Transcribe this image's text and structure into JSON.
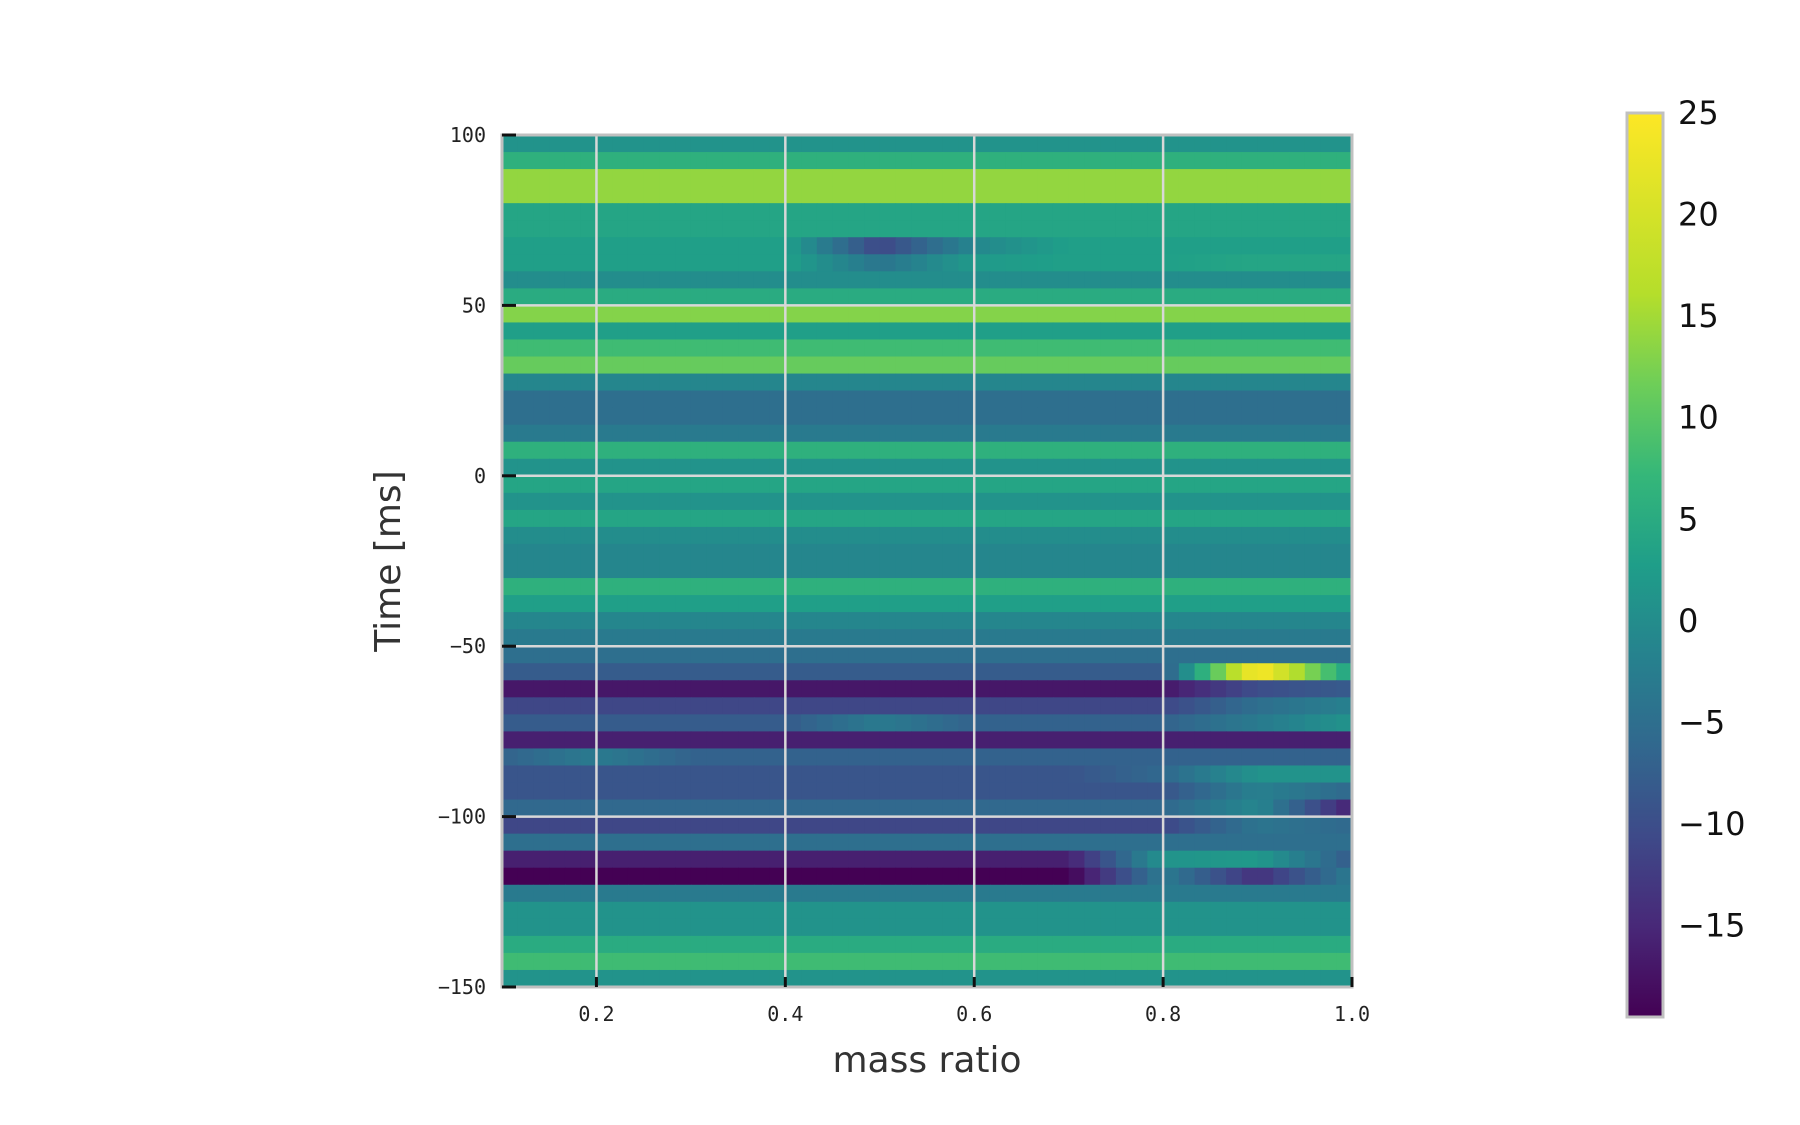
{
  "chart_data": {
    "type": "heatmap",
    "title": "",
    "xlabel": "mass ratio",
    "ylabel": "Time [ms]",
    "xlim": [
      0.1,
      1.0
    ],
    "ylim": [
      -150,
      100
    ],
    "xticks": [
      0.2,
      0.4,
      0.6,
      0.8,
      1.0
    ],
    "xtick_labels": [
      "0.2",
      "0.4",
      "0.6",
      "0.8",
      "1.0"
    ],
    "yticks": [
      100,
      50,
      0,
      -50,
      -100,
      -150
    ],
    "ytick_labels": [
      "100",
      "50",
      "0",
      "−50",
      "−100",
      "−150"
    ],
    "grid": true,
    "colormap": "viridis",
    "colorbar": {
      "vmin": -19.5,
      "vmax": 25,
      "ticks": [
        25,
        20,
        15,
        10,
        5,
        0,
        -5,
        -10,
        -15
      ],
      "tick_labels": [
        "25",
        "20",
        "15",
        "10",
        "5",
        "0",
        "−5",
        "−10",
        "−15"
      ]
    },
    "x_centers": [
      0.1,
      0.2,
      0.3,
      0.4,
      0.5,
      0.6,
      0.7,
      0.8,
      0.9,
      1.0
    ],
    "y_centers": [
      97.5,
      92.5,
      87.5,
      82.5,
      77.5,
      72.5,
      67.5,
      62.5,
      57.5,
      52.5,
      47.5,
      42.5,
      37.5,
      32.5,
      27.5,
      22.5,
      17.5,
      12.5,
      7.5,
      2.5,
      -2.5,
      -7.5,
      -12.5,
      -17.5,
      -22.5,
      -27.5,
      -32.5,
      -37.5,
      -42.5,
      -47.5,
      -52.5,
      -57.5,
      -62.5,
      -67.5,
      -72.5,
      -77.5,
      -82.5,
      -87.5,
      -92.5,
      -97.5,
      -102.5,
      -107.5,
      -112.5,
      -117.5,
      -122.5,
      -127.5,
      -132.5,
      -137.5,
      -142.5,
      -147.5
    ],
    "z": [
      [
        1,
        1,
        1,
        1,
        1,
        1,
        1,
        1,
        1,
        1
      ],
      [
        6,
        6,
        6,
        6,
        6,
        6,
        6,
        6,
        6,
        6
      ],
      [
        14,
        14,
        14,
        14,
        14,
        14,
        14,
        14,
        14,
        14
      ],
      [
        14,
        14,
        14,
        14,
        14,
        14,
        14,
        14,
        14,
        14
      ],
      [
        4,
        4,
        4,
        4,
        4,
        4,
        4,
        4,
        4,
        4
      ],
      [
        4,
        4,
        4,
        4,
        4,
        4,
        4,
        4,
        4,
        4
      ],
      [
        3,
        3,
        3,
        3,
        -11,
        -1,
        3,
        3,
        3,
        3
      ],
      [
        3,
        3,
        3,
        3,
        -4,
        2,
        3,
        3,
        4,
        4
      ],
      [
        0,
        0,
        0,
        0,
        0,
        0,
        0,
        0,
        0,
        0
      ],
      [
        5,
        5,
        5,
        5,
        5,
        5,
        5,
        5,
        5,
        5
      ],
      [
        13,
        13,
        13,
        13,
        13,
        13,
        13,
        13,
        13,
        13
      ],
      [
        3,
        3,
        3,
        3,
        3,
        3,
        3,
        3,
        3,
        3
      ],
      [
        8,
        8,
        8,
        8,
        8,
        8,
        8,
        8,
        8,
        8
      ],
      [
        11,
        11,
        11,
        11,
        11,
        11,
        11,
        11,
        11,
        11
      ],
      [
        -1,
        -1,
        -1,
        -1,
        -1,
        -1,
        -1,
        -1,
        -1,
        -1
      ],
      [
        -5,
        -5,
        -5,
        -5,
        -5,
        -5,
        -5,
        -5,
        -5,
        -5
      ],
      [
        -5,
        -5,
        -5,
        -5,
        -5,
        -5,
        -5,
        -5,
        -5,
        -5
      ],
      [
        -3,
        -3,
        -3,
        -3,
        -3,
        -3,
        -3,
        -3,
        -3,
        -3
      ],
      [
        6,
        6,
        6,
        6,
        6,
        6,
        6,
        6,
        6,
        6
      ],
      [
        1,
        1,
        1,
        1,
        1,
        1,
        1,
        1,
        1,
        1
      ],
      [
        4,
        4,
        4,
        4,
        4,
        4,
        4,
        4,
        4,
        4
      ],
      [
        1,
        1,
        1,
        1,
        1,
        1,
        1,
        1,
        1,
        1
      ],
      [
        4,
        4,
        4,
        4,
        4,
        4,
        4,
        4,
        4,
        4
      ],
      [
        0,
        0,
        0,
        0,
        0,
        0,
        0,
        0,
        0,
        0
      ],
      [
        -1,
        -1,
        -1,
        -1,
        -1,
        -1,
        -1,
        -1,
        -1,
        -1
      ],
      [
        -1,
        -1,
        -1,
        -1,
        -1,
        -1,
        -1,
        -1,
        -1,
        -1
      ],
      [
        6,
        6,
        6,
        6,
        6,
        6,
        6,
        6,
        6,
        6
      ],
      [
        3,
        3,
        3,
        3,
        3,
        3,
        3,
        3,
        3,
        3
      ],
      [
        -1,
        -1,
        -1,
        -1,
        -1,
        -1,
        -1,
        -1,
        -1,
        -1
      ],
      [
        -3,
        -3,
        -3,
        -3,
        -3,
        -3,
        -3,
        -3,
        -3,
        -3
      ],
      [
        -5,
        -5,
        -5,
        -5,
        -5,
        -5,
        -5,
        -5,
        -5,
        -5
      ],
      [
        -8,
        -8,
        -8,
        -8,
        -8,
        -8,
        -8,
        -8,
        25,
        3
      ],
      [
        -17,
        -17,
        -17,
        -17,
        -17,
        -17,
        -17,
        -17,
        -10,
        -8
      ],
      [
        -11,
        -11,
        -11,
        -11,
        -11,
        -11,
        -11,
        -11,
        -5,
        -2
      ],
      [
        -8,
        -8,
        -8,
        -8,
        -3,
        -7,
        -7,
        -7,
        -3,
        1
      ],
      [
        -16,
        -16,
        -16,
        -16,
        -16,
        -16,
        -16,
        -16,
        -16,
        -16
      ],
      [
        -7,
        -3,
        -7,
        -7,
        -7,
        -7,
        -7,
        -7,
        -7,
        -7
      ],
      [
        -9,
        -9,
        -9,
        -9,
        -9,
        -9,
        -9,
        -6,
        1,
        1
      ],
      [
        -9,
        -9,
        -9,
        -9,
        -9,
        -9,
        -9,
        -9,
        -2,
        -6
      ],
      [
        -6,
        -6,
        -6,
        -6,
        -6,
        -6,
        -6,
        -6,
        -1,
        -16
      ],
      [
        -11,
        -11,
        -11,
        -11,
        -11,
        -11,
        -11,
        -11,
        -4,
        -6
      ],
      [
        -5,
        -5,
        -5,
        -5,
        -5,
        -5,
        -5,
        -5,
        -5,
        -5
      ],
      [
        -16,
        -16,
        -16,
        -16,
        -16,
        -16,
        -16,
        1,
        2,
        -8
      ],
      [
        -19.5,
        -19.5,
        -19.5,
        -19.5,
        -19.5,
        -19.5,
        -19.5,
        -3,
        -14,
        -3
      ],
      [
        -3,
        -3,
        -3,
        -3,
        -3,
        -3,
        -3,
        -3,
        -3,
        -3
      ],
      [
        1,
        1,
        1,
        1,
        1,
        1,
        1,
        1,
        1,
        1
      ],
      [
        1,
        1,
        1,
        1,
        1,
        1,
        1,
        1,
        1,
        1
      ],
      [
        5,
        5,
        5,
        5,
        5,
        5,
        5,
        5,
        5,
        5
      ],
      [
        8,
        8,
        8,
        8,
        8,
        8,
        8,
        8,
        8,
        8
      ],
      [
        1,
        1,
        1,
        1,
        1,
        1,
        1,
        1,
        1,
        1
      ]
    ]
  }
}
